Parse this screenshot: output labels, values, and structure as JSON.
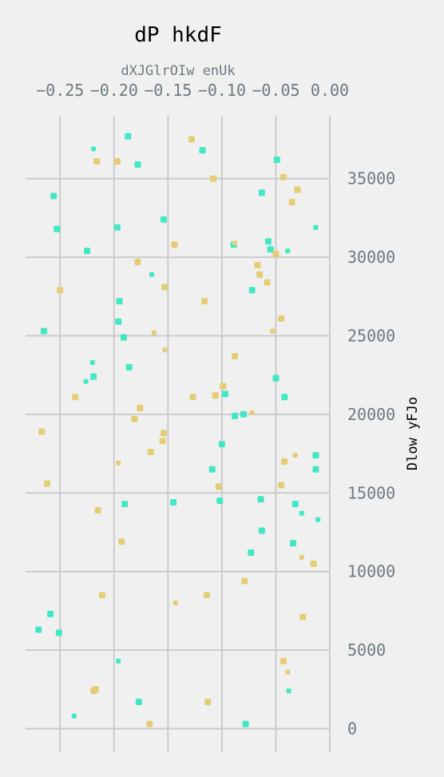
{
  "chart_data": {
    "type": "scatter",
    "title": "dP hkdF",
    "xlabel": "dXJGlrOIw enUk",
    "ylabel": "Dlow yFJo",
    "xlim": [
      -0.282,
      0.0
    ],
    "ylim": [
      -1500,
      39000
    ],
    "x_ticks": [
      -0.25,
      -0.2,
      -0.15,
      -0.1,
      -0.05,
      0.0
    ],
    "x_tick_labels": [
      "−0.25",
      "−0.20",
      "−0.15",
      "−0.10",
      "−0.05",
      "0.00"
    ],
    "y_ticks": [
      0,
      5000,
      10000,
      15000,
      20000,
      25000,
      30000,
      35000
    ],
    "y_tick_labels": [
      "0",
      "5000",
      "10000",
      "15000",
      "20000",
      "25000",
      "30000",
      "35000"
    ],
    "x_axis_position": "top",
    "y_axis_position": "right",
    "grid": true,
    "series": [
      {
        "color": "#42e8c4",
        "points": [
          {
            "x": -0.187,
            "y": 37700,
            "s": 8
          },
          {
            "x": -0.219,
            "y": 36900,
            "s": 6
          },
          {
            "x": -0.118,
            "y": 36800,
            "s": 8
          },
          {
            "x": -0.178,
            "y": 35900,
            "s": 8
          },
          {
            "x": -0.049,
            "y": 36200,
            "s": 8
          },
          {
            "x": -0.256,
            "y": 33900,
            "s": 8
          },
          {
            "x": -0.063,
            "y": 34100,
            "s": 8
          },
          {
            "x": -0.154,
            "y": 32400,
            "s": 8
          },
          {
            "x": -0.013,
            "y": 31900,
            "s": 6
          },
          {
            "x": -0.253,
            "y": 31800,
            "s": 8
          },
          {
            "x": -0.197,
            "y": 31900,
            "s": 8
          },
          {
            "x": -0.225,
            "y": 30400,
            "s": 8
          },
          {
            "x": -0.089,
            "y": 30800,
            "s": 8
          },
          {
            "x": -0.057,
            "y": 31000,
            "s": 8
          },
          {
            "x": -0.055,
            "y": 30500,
            "s": 8
          },
          {
            "x": -0.039,
            "y": 30400,
            "s": 6
          },
          {
            "x": -0.165,
            "y": 28900,
            "s": 6
          },
          {
            "x": -0.072,
            "y": 27900,
            "s": 8
          },
          {
            "x": -0.195,
            "y": 27200,
            "s": 8
          },
          {
            "x": -0.196,
            "y": 25900,
            "s": 8
          },
          {
            "x": -0.265,
            "y": 25300,
            "s": 8
          },
          {
            "x": -0.191,
            "y": 24900,
            "s": 8
          },
          {
            "x": -0.22,
            "y": 23300,
            "s": 6
          },
          {
            "x": -0.186,
            "y": 23000,
            "s": 8
          },
          {
            "x": -0.219,
            "y": 22400,
            "s": 8
          },
          {
            "x": -0.226,
            "y": 22100,
            "s": 6
          },
          {
            "x": -0.05,
            "y": 22300,
            "s": 8
          },
          {
            "x": -0.097,
            "y": 21300,
            "s": 8
          },
          {
            "x": -0.042,
            "y": 21100,
            "s": 8
          },
          {
            "x": -0.088,
            "y": 19900,
            "s": 8
          },
          {
            "x": -0.08,
            "y": 20000,
            "s": 8
          },
          {
            "x": -0.1,
            "y": 18100,
            "s": 8
          },
          {
            "x": -0.013,
            "y": 17400,
            "s": 8
          },
          {
            "x": -0.013,
            "y": 16500,
            "s": 8
          },
          {
            "x": -0.109,
            "y": 16500,
            "s": 8
          },
          {
            "x": -0.145,
            "y": 14400,
            "s": 8
          },
          {
            "x": -0.064,
            "y": 14600,
            "s": 8
          },
          {
            "x": -0.102,
            "y": 14500,
            "s": 8
          },
          {
            "x": -0.19,
            "y": 14300,
            "s": 8
          },
          {
            "x": -0.032,
            "y": 14300,
            "s": 8
          },
          {
            "x": -0.026,
            "y": 13700,
            "s": 6
          },
          {
            "x": -0.011,
            "y": 13300,
            "s": 6
          },
          {
            "x": -0.063,
            "y": 12600,
            "s": 8
          },
          {
            "x": -0.034,
            "y": 11800,
            "s": 8
          },
          {
            "x": -0.073,
            "y": 11200,
            "s": 8
          },
          {
            "x": -0.259,
            "y": 7300,
            "s": 8
          },
          {
            "x": -0.27,
            "y": 6300,
            "s": 8
          },
          {
            "x": -0.251,
            "y": 6100,
            "s": 8
          },
          {
            "x": -0.196,
            "y": 4300,
            "s": 6
          },
          {
            "x": -0.038,
            "y": 2400,
            "s": 6
          },
          {
            "x": -0.177,
            "y": 1700,
            "s": 8
          },
          {
            "x": -0.237,
            "y": 800,
            "s": 6
          },
          {
            "x": -0.078,
            "y": 300,
            "s": 8
          }
        ]
      },
      {
        "color": "#e5cd76",
        "points": [
          {
            "x": -0.128,
            "y": 37500,
            "s": 8
          },
          {
            "x": -0.216,
            "y": 36100,
            "s": 8
          },
          {
            "x": -0.197,
            "y": 36100,
            "s": 8
          },
          {
            "x": -0.108,
            "y": 35000,
            "s": 8
          },
          {
            "x": -0.043,
            "y": 35100,
            "s": 8
          },
          {
            "x": -0.03,
            "y": 34300,
            "s": 8
          },
          {
            "x": -0.035,
            "y": 33500,
            "s": 8
          },
          {
            "x": -0.088,
            "y": 30900,
            "s": 6
          },
          {
            "x": -0.144,
            "y": 30800,
            "s": 8
          },
          {
            "x": -0.05,
            "y": 30200,
            "s": 8
          },
          {
            "x": -0.178,
            "y": 29700,
            "s": 8
          },
          {
            "x": -0.067,
            "y": 29500,
            "s": 8
          },
          {
            "x": -0.065,
            "y": 28900,
            "s": 8
          },
          {
            "x": -0.058,
            "y": 28400,
            "s": 8
          },
          {
            "x": -0.25,
            "y": 27900,
            "s": 8
          },
          {
            "x": -0.153,
            "y": 28100,
            "s": 8
          },
          {
            "x": -0.116,
            "y": 27200,
            "s": 8
          },
          {
            "x": -0.045,
            "y": 26100,
            "s": 8
          },
          {
            "x": -0.163,
            "y": 25200,
            "s": 6
          },
          {
            "x": -0.053,
            "y": 25300,
            "s": 6
          },
          {
            "x": -0.153,
            "y": 24100,
            "s": 6
          },
          {
            "x": -0.088,
            "y": 23700,
            "s": 8
          },
          {
            "x": -0.099,
            "y": 21800,
            "s": 8
          },
          {
            "x": -0.106,
            "y": 21200,
            "s": 8
          },
          {
            "x": -0.236,
            "y": 21100,
            "s": 8
          },
          {
            "x": -0.127,
            "y": 21100,
            "s": 8
          },
          {
            "x": -0.176,
            "y": 20400,
            "s": 8
          },
          {
            "x": -0.072,
            "y": 20100,
            "s": 6
          },
          {
            "x": -0.181,
            "y": 19700,
            "s": 8
          },
          {
            "x": -0.267,
            "y": 18900,
            "s": 8
          },
          {
            "x": -0.154,
            "y": 18800,
            "s": 8
          },
          {
            "x": -0.155,
            "y": 18300,
            "s": 8
          },
          {
            "x": -0.166,
            "y": 17600,
            "s": 8
          },
          {
            "x": -0.032,
            "y": 17400,
            "s": 6
          },
          {
            "x": -0.042,
            "y": 17000,
            "s": 8
          },
          {
            "x": -0.196,
            "y": 16900,
            "s": 6
          },
          {
            "x": -0.262,
            "y": 15600,
            "s": 8
          },
          {
            "x": -0.103,
            "y": 15400,
            "s": 8
          },
          {
            "x": -0.045,
            "y": 15500,
            "s": 8
          },
          {
            "x": -0.215,
            "y": 13900,
            "s": 8
          },
          {
            "x": -0.193,
            "y": 11900,
            "s": 8
          },
          {
            "x": -0.026,
            "y": 10900,
            "s": 6
          },
          {
            "x": -0.015,
            "y": 10500,
            "s": 8
          },
          {
            "x": -0.079,
            "y": 9400,
            "s": 8
          },
          {
            "x": -0.211,
            "y": 8500,
            "s": 8
          },
          {
            "x": -0.114,
            "y": 8500,
            "s": 8
          },
          {
            "x": -0.143,
            "y": 8000,
            "s": 6
          },
          {
            "x": -0.025,
            "y": 7100,
            "s": 8
          },
          {
            "x": -0.043,
            "y": 4300,
            "s": 8
          },
          {
            "x": -0.039,
            "y": 3600,
            "s": 6
          },
          {
            "x": -0.217,
            "y": 2500,
            "s": 8
          },
          {
            "x": -0.219,
            "y": 2400,
            "s": 8
          },
          {
            "x": -0.113,
            "y": 1700,
            "s": 8
          },
          {
            "x": -0.167,
            "y": 300,
            "s": 8
          }
        ]
      }
    ]
  }
}
